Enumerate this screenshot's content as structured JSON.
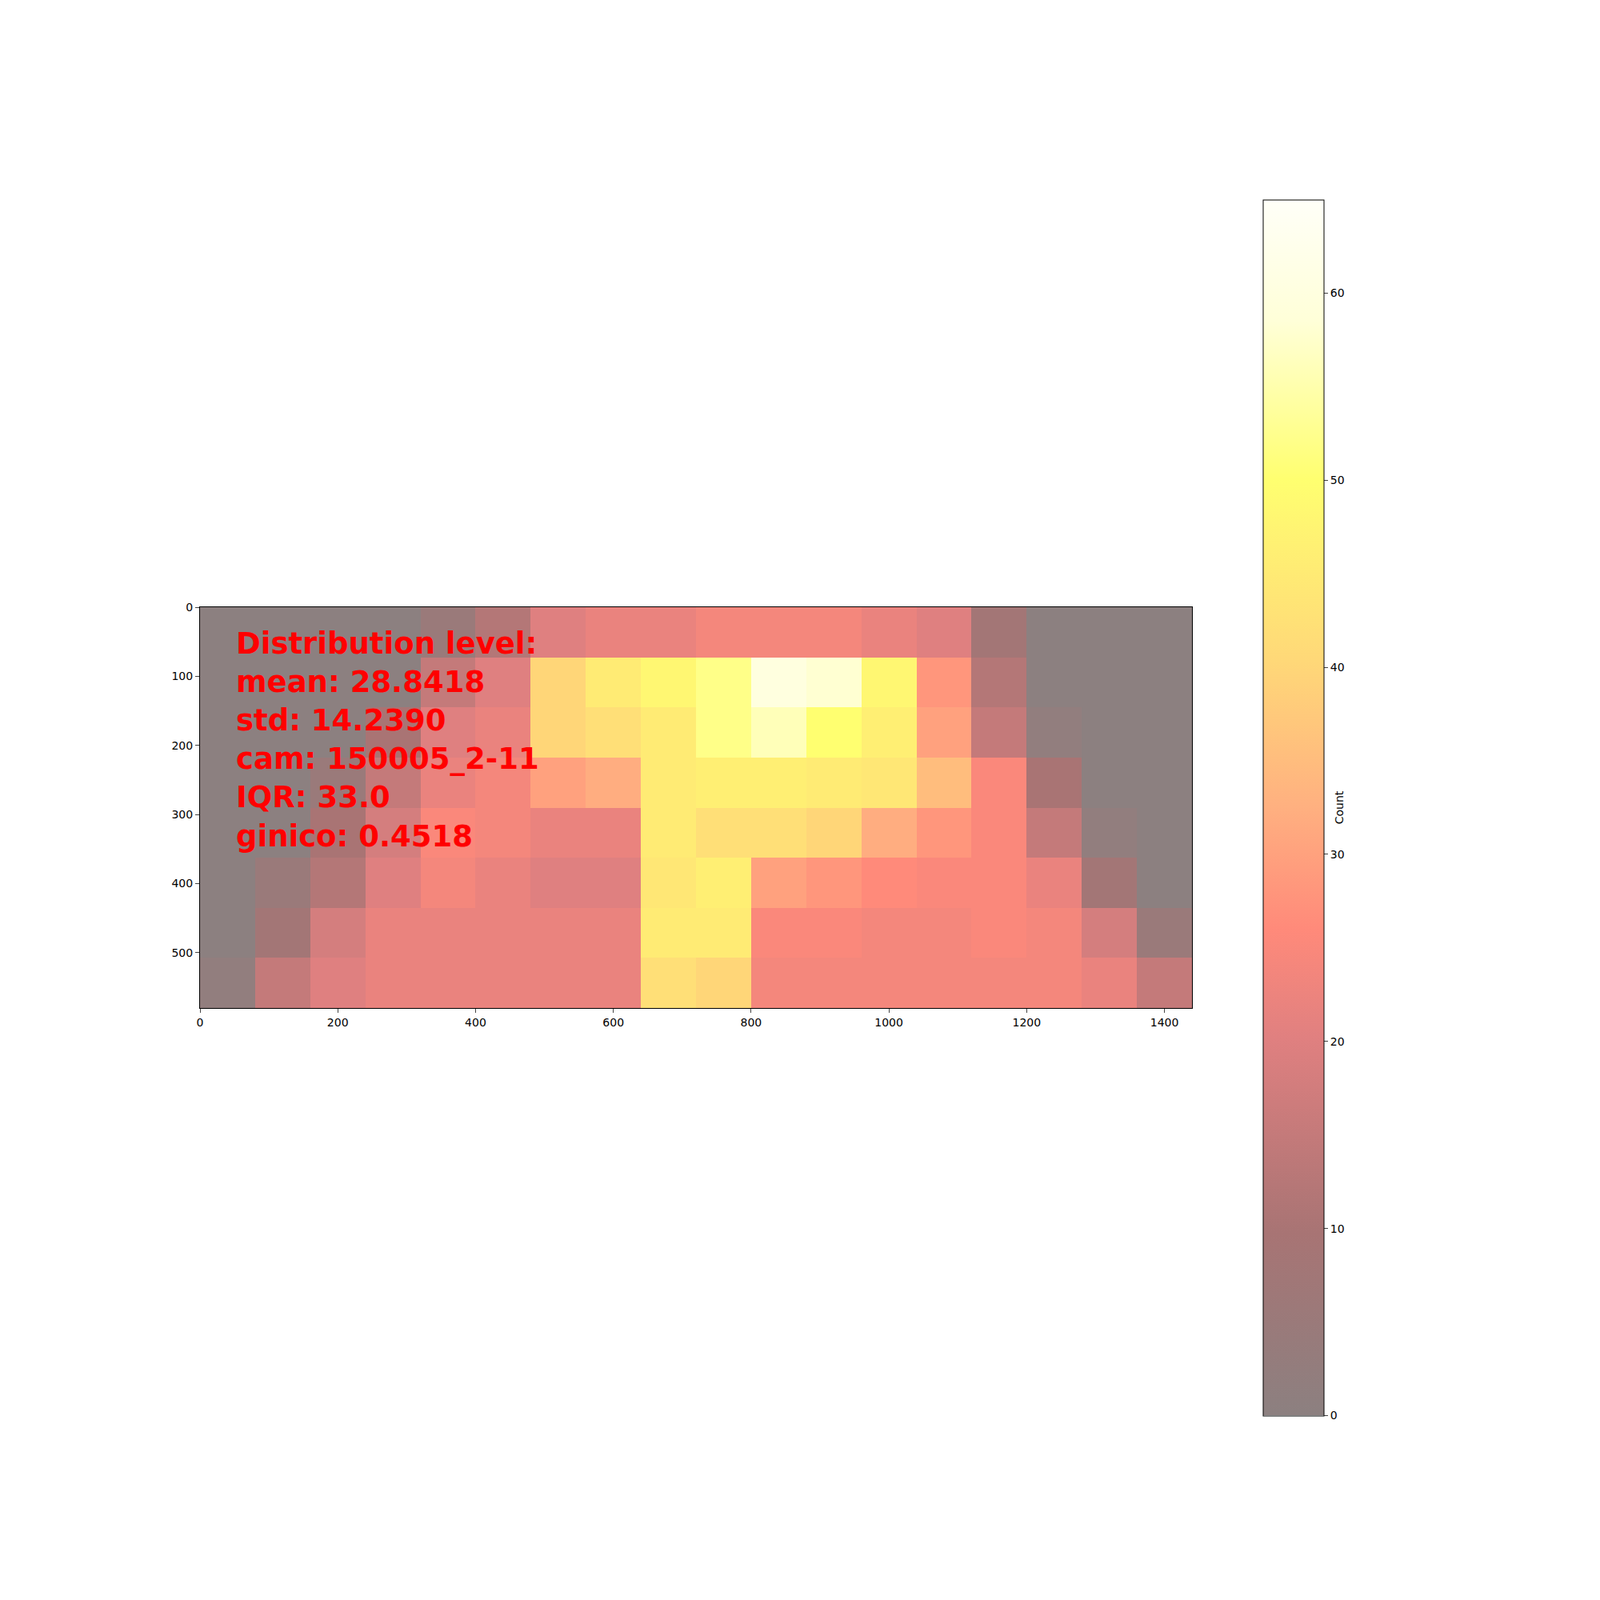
{
  "chart_data": {
    "type": "heatmap",
    "annotations": [
      "Distribution level:",
      "mean: 28.8418",
      "std: 14.2390",
      "cam: 150005_2-11",
      "IQR: 33.0",
      "ginico: 0.4518"
    ],
    "x": [
      40,
      120,
      200,
      280,
      360,
      440,
      520,
      600,
      680,
      760,
      840,
      920,
      1000,
      1080,
      1160,
      1240,
      1320,
      1400
    ],
    "y": [
      36.25,
      108.75,
      181.25,
      253.75,
      326.25,
      398.75,
      471.25,
      543.75
    ],
    "z": [
      [
        0,
        0,
        0,
        0,
        5,
        12,
        20,
        22,
        22,
        24,
        24,
        24,
        22,
        20,
        8,
        0,
        0,
        0
      ],
      [
        0,
        0,
        0,
        0,
        15,
        20,
        40,
        45,
        48,
        52,
        60,
        58,
        48,
        28,
        12,
        0,
        0,
        0
      ],
      [
        0,
        0,
        0,
        10,
        20,
        22,
        40,
        42,
        45,
        52,
        56,
        50,
        46,
        30,
        15,
        2,
        0,
        0
      ],
      [
        0,
        0,
        5,
        15,
        22,
        24,
        30,
        32,
        45,
        46,
        46,
        45,
        44,
        35,
        25,
        10,
        0,
        0
      ],
      [
        0,
        0,
        10,
        18,
        25,
        24,
        22,
        22,
        45,
        42,
        42,
        40,
        32,
        28,
        25,
        15,
        2,
        0
      ],
      [
        0,
        5,
        12,
        20,
        24,
        22,
        20,
        20,
        44,
        46,
        30,
        28,
        26,
        25,
        25,
        22,
        8,
        0
      ],
      [
        0,
        8,
        18,
        22,
        22,
        22,
        22,
        22,
        45,
        45,
        25,
        25,
        24,
        24,
        25,
        24,
        18,
        5
      ],
      [
        2,
        15,
        20,
        22,
        22,
        22,
        22,
        22,
        42,
        40,
        24,
        24,
        24,
        24,
        24,
        24,
        22,
        15
      ]
    ],
    "xlim": [
      0,
      1440
    ],
    "ylim": [
      580,
      0
    ],
    "xticks": [
      0,
      200,
      400,
      600,
      800,
      1000,
      1200,
      1400
    ],
    "yticks": [
      0,
      100,
      200,
      300,
      400,
      500
    ],
    "zlim": [
      0,
      65
    ],
    "colorbar_ticks": [
      0,
      10,
      20,
      30,
      40,
      50,
      60
    ],
    "colorbar_title": "Count"
  }
}
